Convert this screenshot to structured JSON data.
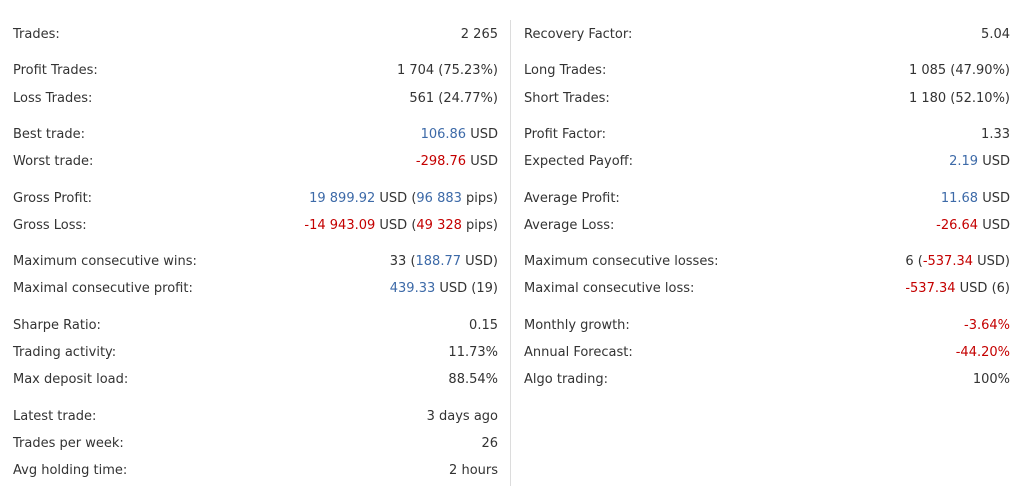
{
  "columns": [
    {
      "groups": [
        {
          "rows": [
            {
              "label": "Trades:",
              "value": [
                {
                  "text": "2 265"
                }
              ]
            }
          ]
        },
        {
          "rows": [
            {
              "label": "Profit Trades:",
              "value": [
                {
                  "text": "1 704 (75.23%)"
                }
              ]
            },
            {
              "label": "Loss Trades:",
              "value": [
                {
                  "text": "561 (24.77%)"
                }
              ]
            }
          ]
        },
        {
          "rows": [
            {
              "label": "Best trade:",
              "value": [
                {
                  "text": "106.86",
                  "color": "#3d6aa8"
                },
                {
                  "text": " USD"
                }
              ]
            },
            {
              "label": "Worst trade:",
              "value": [
                {
                  "text": "-298.76",
                  "color": "#c40000"
                },
                {
                  "text": " USD"
                }
              ]
            }
          ]
        },
        {
          "rows": [
            {
              "label": "Gross Profit:",
              "value": [
                {
                  "text": "19 899.92",
                  "color": "#3d6aa8"
                },
                {
                  "text": " USD ("
                },
                {
                  "text": "96 883",
                  "color": "#3d6aa8"
                },
                {
                  "text": " pips)"
                }
              ]
            },
            {
              "label": "Gross Loss:",
              "value": [
                {
                  "text": "-14 943.09",
                  "color": "#c40000"
                },
                {
                  "text": " USD ("
                },
                {
                  "text": "49 328",
                  "color": "#c40000"
                },
                {
                  "text": " pips)"
                }
              ]
            }
          ]
        },
        {
          "rows": [
            {
              "label": "Maximum consecutive wins:",
              "value": [
                {
                  "text": "33 ("
                },
                {
                  "text": "188.77",
                  "color": "#3d6aa8"
                },
                {
                  "text": " USD)"
                }
              ]
            },
            {
              "label": "Maximal consecutive profit:",
              "value": [
                {
                  "text": "439.33",
                  "color": "#3d6aa8"
                },
                {
                  "text": " USD (19)"
                }
              ]
            }
          ]
        },
        {
          "rows": [
            {
              "label": "Sharpe Ratio:",
              "value": [
                {
                  "text": "0.15"
                }
              ]
            },
            {
              "label": "Trading activity:",
              "value": [
                {
                  "text": "11.73%"
                }
              ]
            },
            {
              "label": "Max deposit load:",
              "value": [
                {
                  "text": "88.54%"
                }
              ]
            }
          ]
        },
        {
          "rows": [
            {
              "label": "Latest trade:",
              "value": [
                {
                  "text": "3 days ago"
                }
              ]
            },
            {
              "label": "Trades per week:",
              "value": [
                {
                  "text": "26"
                }
              ]
            },
            {
              "label": "Avg holding time:",
              "value": [
                {
                  "text": "2 hours"
                }
              ]
            }
          ]
        }
      ]
    },
    {
      "groups": [
        {
          "rows": [
            {
              "label": "Recovery Factor:",
              "value": [
                {
                  "text": "5.04"
                }
              ]
            }
          ]
        },
        {
          "rows": [
            {
              "label": "Long Trades:",
              "value": [
                {
                  "text": "1 085 (47.90%)"
                }
              ]
            },
            {
              "label": "Short Trades:",
              "value": [
                {
                  "text": "1 180 (52.10%)"
                }
              ]
            }
          ]
        },
        {
          "rows": [
            {
              "label": "Profit Factor:",
              "value": [
                {
                  "text": "1.33"
                }
              ]
            },
            {
              "label": "Expected Payoff:",
              "value": [
                {
                  "text": "2.19",
                  "color": "#3d6aa8"
                },
                {
                  "text": " USD"
                }
              ]
            }
          ]
        },
        {
          "rows": [
            {
              "label": "Average Profit:",
              "value": [
                {
                  "text": "11.68",
                  "color": "#3d6aa8"
                },
                {
                  "text": " USD"
                }
              ]
            },
            {
              "label": "Average Loss:",
              "value": [
                {
                  "text": "-26.64",
                  "color": "#c40000"
                },
                {
                  "text": " USD"
                }
              ]
            }
          ]
        },
        {
          "rows": [
            {
              "label": "Maximum consecutive losses:",
              "value": [
                {
                  "text": "6 ("
                },
                {
                  "text": "-537.34",
                  "color": "#c40000"
                },
                {
                  "text": " USD)"
                }
              ]
            },
            {
              "label": "Maximal consecutive loss:",
              "value": [
                {
                  "text": "-537.34",
                  "color": "#c40000"
                },
                {
                  "text": " USD (6)"
                }
              ]
            }
          ]
        },
        {
          "rows": [
            {
              "label": "Monthly growth:",
              "value": [
                {
                  "text": "-3.64%",
                  "color": "#c40000"
                }
              ]
            },
            {
              "label": "Annual Forecast:",
              "value": [
                {
                  "text": "-44.20%",
                  "color": "#c40000"
                }
              ]
            },
            {
              "label": "Algo trading:",
              "value": [
                {
                  "text": "100%"
                }
              ]
            }
          ]
        }
      ]
    }
  ]
}
